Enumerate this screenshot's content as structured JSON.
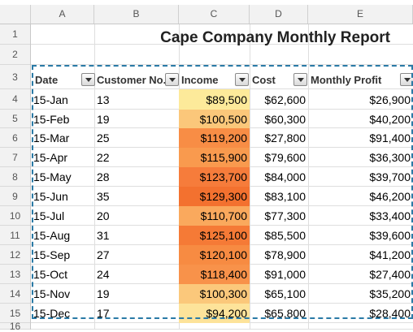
{
  "columns": [
    "A",
    "B",
    "C",
    "D",
    "E"
  ],
  "rows": [
    "1",
    "2",
    "3",
    "4",
    "5",
    "6",
    "7",
    "8",
    "9",
    "10",
    "11",
    "12",
    "13",
    "14",
    "15",
    "16"
  ],
  "title": "Cape Company Monthly Report",
  "headers": [
    "Date",
    "Customer No.",
    "Income",
    "Cost",
    "Monthly Profit"
  ],
  "data": [
    {
      "date": "15-Jan",
      "customers": "13",
      "income": "$89,500",
      "cost": "$62,600",
      "profit": "$26,900",
      "color": "#fdea9a"
    },
    {
      "date": "15-Feb",
      "customers": "19",
      "income": "$100,500",
      "cost": "$60,300",
      "profit": "$40,200",
      "color": "#fbc77a"
    },
    {
      "date": "15-Mar",
      "customers": "25",
      "income": "$119,200",
      "cost": "$27,800",
      "profit": "$91,400",
      "color": "#f88d45"
    },
    {
      "date": "15-Apr",
      "customers": "22",
      "income": "$115,900",
      "cost": "$79,600",
      "profit": "$36,300",
      "color": "#f99a4e"
    },
    {
      "date": "15-May",
      "customers": "28",
      "income": "$123,700",
      "cost": "$84,000",
      "profit": "$39,700",
      "color": "#f67c3b"
    },
    {
      "date": "15-Jun",
      "customers": "35",
      "income": "$129,300",
      "cost": "$83,100",
      "profit": "$46,200",
      "color": "#f3712f"
    },
    {
      "date": "15-Jul",
      "customers": "20",
      "income": "$110,700",
      "cost": "$77,300",
      "profit": "$33,400",
      "color": "#faa95d"
    },
    {
      "date": "15-Aug",
      "customers": "31",
      "income": "$125,100",
      "cost": "$85,500",
      "profit": "$39,600",
      "color": "#f57a36"
    },
    {
      "date": "15-Sep",
      "customers": "27",
      "income": "$120,100",
      "cost": "$78,900",
      "profit": "$41,200",
      "color": "#f78b42"
    },
    {
      "date": "15-Oct",
      "customers": "24",
      "income": "$118,400",
      "cost": "$91,000",
      "profit": "$27,400",
      "color": "#f8924a"
    },
    {
      "date": "15-Nov",
      "customers": "19",
      "income": "$100,300",
      "cost": "$65,100",
      "profit": "$35,200",
      "color": "#fbc87b"
    },
    {
      "date": "15-Dec",
      "customers": "17",
      "income": "$94,200",
      "cost": "$65,800",
      "profit": "$28,400",
      "color": "#fde39a"
    }
  ]
}
